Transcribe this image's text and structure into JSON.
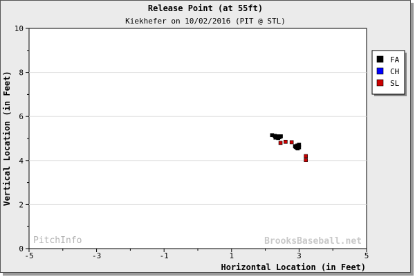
{
  "chart_data": {
    "type": "scatter",
    "title": "Release Point (at 55ft)",
    "subtitle": "Kiekhefer on 10/02/2016 (PIT @ STL)",
    "xlabel": "Horizontal Location (in Feet)",
    "ylabel": "Vertical Location (in Feet)",
    "xlim": [
      -5,
      5
    ],
    "ylim": [
      0,
      10
    ],
    "xticks": [
      -5,
      -3,
      -1,
      1,
      3,
      5
    ],
    "yticks": [
      0,
      2,
      4,
      6,
      8,
      10
    ],
    "grid": "horizontal",
    "legend_position": "right",
    "series": [
      {
        "name": "FA",
        "color": "#000000",
        "points": [
          [
            2.2,
            5.15
          ],
          [
            2.28,
            5.12
          ],
          [
            2.32,
            5.08
          ],
          [
            2.36,
            5.1
          ],
          [
            2.42,
            5.06
          ],
          [
            2.46,
            5.1
          ],
          [
            2.3,
            5.04
          ],
          [
            2.38,
            5.02
          ],
          [
            2.9,
            4.62
          ],
          [
            2.95,
            4.68
          ],
          [
            3.0,
            4.72
          ],
          [
            2.93,
            4.58
          ],
          [
            3.0,
            4.6
          ],
          [
            2.96,
            4.55
          ],
          [
            2.88,
            4.65
          ]
        ]
      },
      {
        "name": "CH",
        "color": "#0000ff",
        "points": []
      },
      {
        "name": "SL",
        "color": "#cc0000",
        "points": [
          [
            2.45,
            4.8
          ],
          [
            2.6,
            4.85
          ],
          [
            2.78,
            4.83
          ],
          [
            3.2,
            4.2
          ],
          [
            3.2,
            4.02
          ]
        ]
      }
    ]
  },
  "watermarks": {
    "left": "PitchInfo",
    "right": "BrooksBaseball.net"
  }
}
